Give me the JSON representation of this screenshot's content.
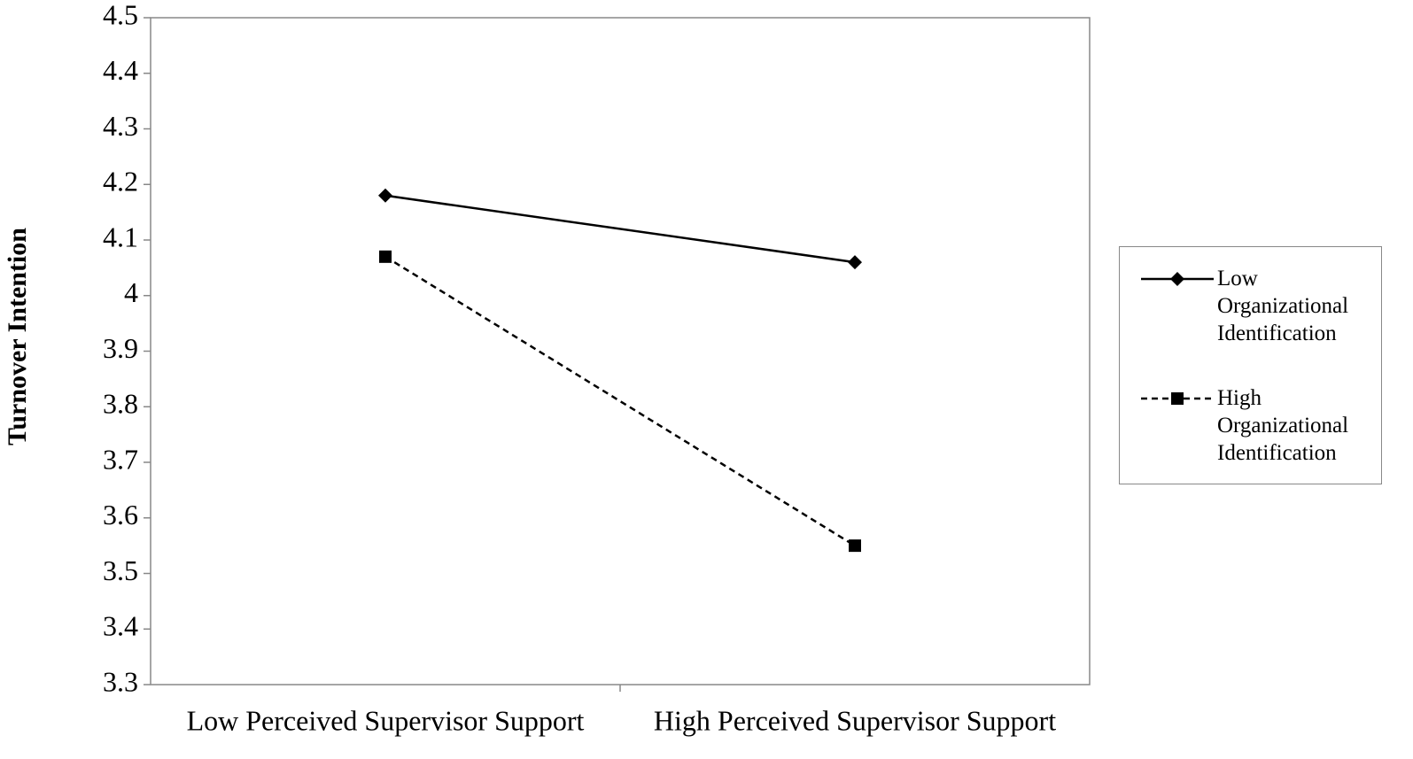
{
  "chart_data": {
    "type": "line",
    "y_label": "Turnover Intention",
    "categories": [
      "Low Perceived Supervisor Support",
      "High Perceived Supervisor Support"
    ],
    "series": [
      {
        "name": "Low Organizational Identification",
        "color": "#000000",
        "line_style": "solid",
        "marker": "diamond",
        "values": [
          4.18,
          4.06
        ]
      },
      {
        "name": "High Organizational Identification",
        "color": "#000000",
        "line_style": "dashed",
        "marker": "square",
        "values": [
          4.07,
          3.55
        ]
      }
    ],
    "ylim": [
      3.3,
      4.5
    ],
    "yticks": [
      3.3,
      3.4,
      3.5,
      3.6,
      3.7,
      3.8,
      3.9,
      4,
      4.1,
      4.2,
      4.3,
      4.4,
      4.5
    ],
    "grid": false,
    "legend": "right"
  }
}
